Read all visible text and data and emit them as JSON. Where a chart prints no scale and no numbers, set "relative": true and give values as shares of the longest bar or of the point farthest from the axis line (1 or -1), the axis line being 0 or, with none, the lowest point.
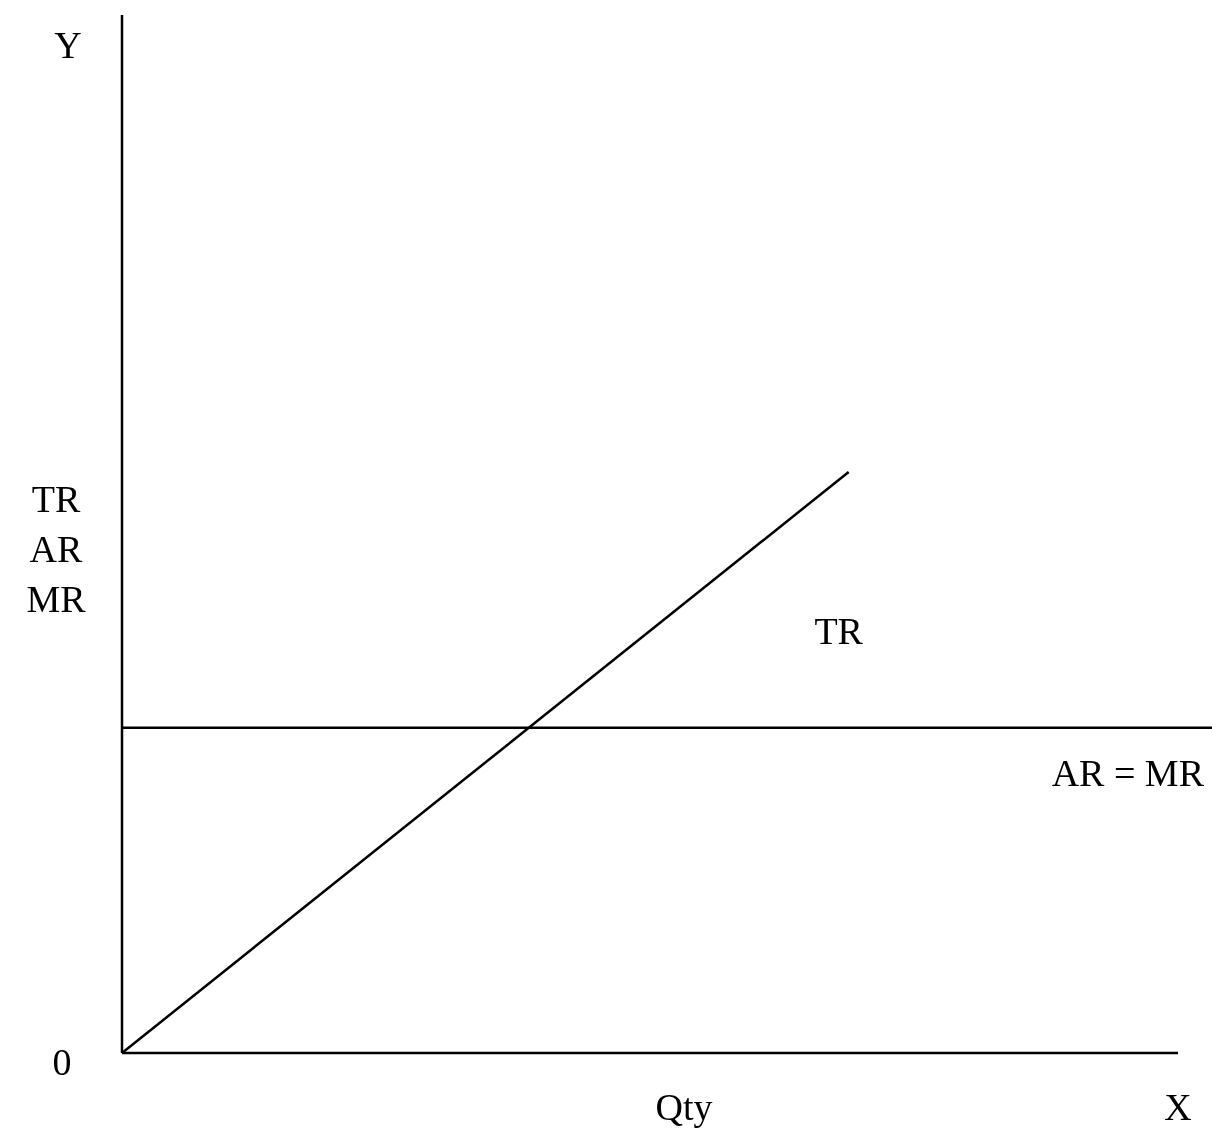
{
  "chart_data": {
    "type": "line",
    "relative": true,
    "xlabel": "Qty",
    "ylabel": "TR AR MR",
    "categories": [
      null,
      null,
      null,
      null
    ],
    "series": [
      {
        "name": "TR",
        "color": "#000000",
        "values": [
          0,
          0.5,
          1,
          null
        ]
      },
      {
        "name": "AR = MR",
        "color": "#000000",
        "values": [
          0.56,
          0.56,
          0.56,
          0.56
        ]
      }
    ],
    "annotations": [
      "Y",
      "X",
      "0"
    ],
    "legend": false,
    "marker": "none",
    "line_style": "solid"
  }
}
